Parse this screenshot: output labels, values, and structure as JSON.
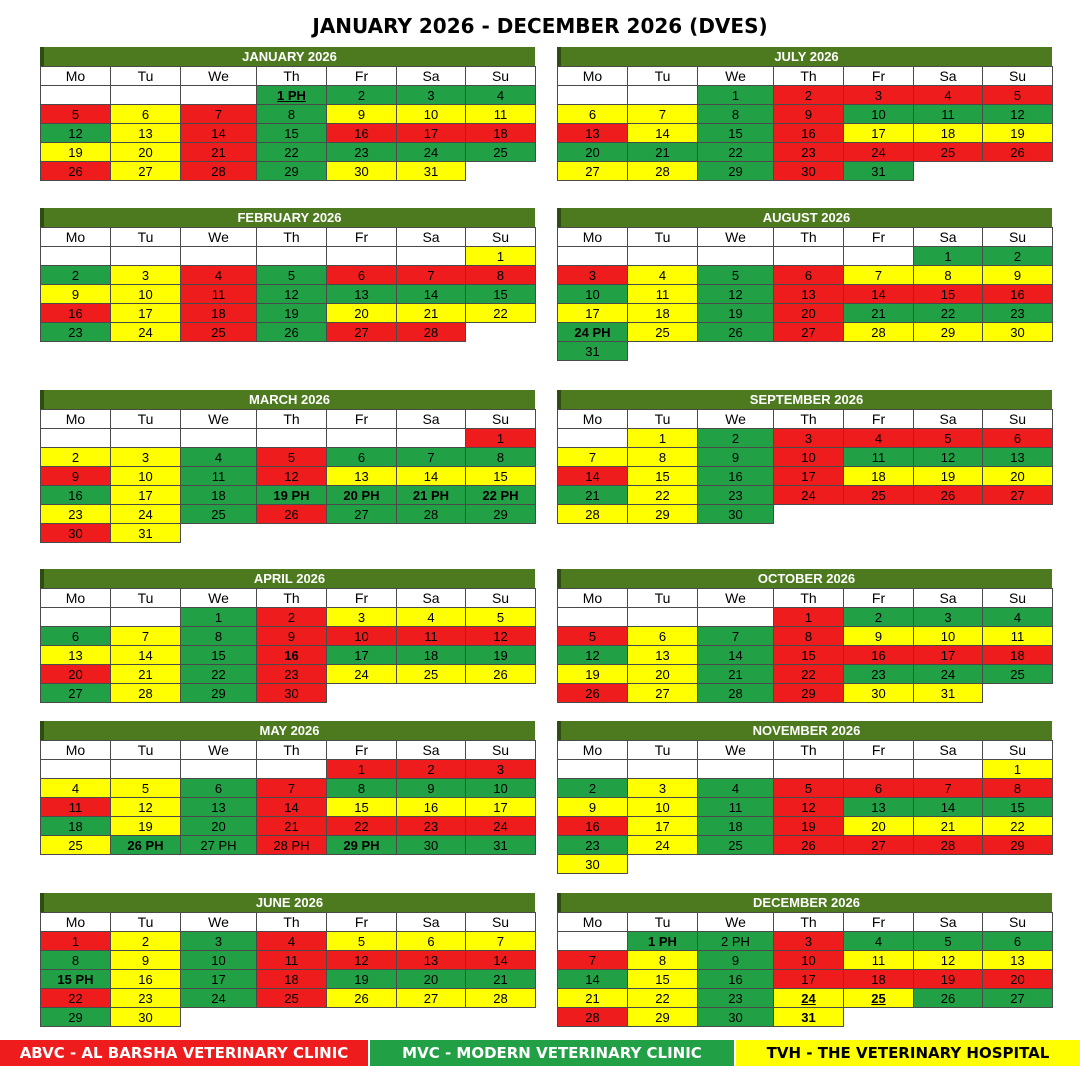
{
  "title": "JANUARY 2026 - DECEMBER 2026 (DVES)",
  "weekdays": [
    "Mo",
    "Tu",
    "We",
    "Th",
    "Fr",
    "Sa",
    "Su"
  ],
  "colors": {
    "red": "#ee1c1c",
    "green": "#22a045",
    "yellow": "#ffff00",
    "header": "#4e7a1f"
  },
  "legend": {
    "abvc": "ABVC - AL BARSHA VETERINARY CLINIC",
    "mvc": "MVC - MODERN VETERINARY CLINIC",
    "tvh": "TVH - THE VETERINARY HOSPITAL"
  },
  "months": [
    {
      "name": "JANUARY 2026",
      "col": 0,
      "top": 47,
      "rows": [
        [
          "w",
          "w",
          "w",
          "g:1 PH:bu",
          "g:2",
          "g:3",
          "g:4"
        ],
        [
          "r:5",
          "y:6",
          "r:7",
          "g:8",
          "y:9",
          "y:10",
          "y:11"
        ],
        [
          "g:12",
          "y:13",
          "r:14",
          "g:15",
          "r:16",
          "r:17",
          "r:18"
        ],
        [
          "y:19",
          "y:20",
          "r:21",
          "g:22",
          "g:23",
          "g:24",
          "g:25"
        ],
        [
          "r:26",
          "y:27",
          "r:28",
          "g:29",
          "y:30",
          "y:31",
          "n"
        ]
      ]
    },
    {
      "name": "FEBRUARY 2026",
      "col": 0,
      "top": 208,
      "rows": [
        [
          "w",
          "w",
          "w",
          "w",
          "w",
          "w",
          "y:1"
        ],
        [
          "g:2",
          "y:3",
          "r:4",
          "g:5",
          "r:6",
          "r:7",
          "r:8"
        ],
        [
          "y:9",
          "y:10",
          "r:11",
          "g:12",
          "g:13",
          "g:14",
          "g:15"
        ],
        [
          "r:16",
          "y:17",
          "r:18",
          "g:19",
          "y:20",
          "y:21",
          "y:22"
        ],
        [
          "g:23",
          "y:24",
          "r:25",
          "g:26",
          "r:27",
          "r:28",
          "n"
        ]
      ]
    },
    {
      "name": "MARCH 2026",
      "col": 0,
      "top": 390,
      "rows": [
        [
          "w",
          "w",
          "w",
          "w",
          "w",
          "w",
          "r:1"
        ],
        [
          "y:2",
          "y:3",
          "g:4",
          "r:5",
          "g:6",
          "g:7",
          "g:8"
        ],
        [
          "r:9",
          "y:10",
          "g:11",
          "r:12",
          "y:13",
          "y:14",
          "y:15"
        ],
        [
          "g:16",
          "y:17",
          "g:18",
          "g:19 PH:b",
          "g:20 PH:b",
          "g:21 PH:b",
          "g:22 PH:b"
        ],
        [
          "y:23",
          "y:24",
          "g:25",
          "r:26",
          "g:27",
          "g:28",
          "g:29"
        ],
        [
          "r:30",
          "y:31",
          "n",
          "n",
          "n",
          "n",
          "n"
        ]
      ]
    },
    {
      "name": "APRIL 2026",
      "col": 0,
      "top": 569,
      "rows": [
        [
          "w",
          "w",
          "g:1",
          "r:2",
          "y:3",
          "y:4",
          "y:5"
        ],
        [
          "g:6",
          "y:7",
          "g:8",
          "r:9",
          "r:10",
          "r:11",
          "r:12"
        ],
        [
          "y:13",
          "y:14",
          "g:15",
          "r:16:b",
          "g:17",
          "g:18",
          "g:19"
        ],
        [
          "r:20",
          "y:21",
          "g:22",
          "r:23",
          "y:24",
          "y:25",
          "y:26"
        ],
        [
          "g:27",
          "y:28",
          "g:29",
          "r:30",
          "n",
          "n",
          "n"
        ]
      ]
    },
    {
      "name": "MAY 2026",
      "col": 0,
      "top": 721,
      "rows": [
        [
          "w",
          "w",
          "w",
          "w",
          "r:1",
          "r:2",
          "r:3"
        ],
        [
          "y:4",
          "y:5",
          "g:6",
          "r:7",
          "g:8",
          "g:9",
          "g:10"
        ],
        [
          "r:11",
          "y:12",
          "g:13",
          "r:14",
          "y:15",
          "y:16",
          "y:17"
        ],
        [
          "g:18",
          "y:19",
          "g:20",
          "r:21",
          "r:22",
          "r:23",
          "r:24"
        ],
        [
          "y:25",
          "g:26 PH:b",
          "g:27 PH",
          "r:28 PH",
          "g:29 PH:b",
          "g:30",
          "g:31"
        ]
      ]
    },
    {
      "name": "JUNE 2026",
      "col": 0,
      "top": 893,
      "rows": [
        [
          "r:1",
          "y:2",
          "g:3",
          "r:4",
          "y:5",
          "y:6",
          "y:7"
        ],
        [
          "g:8",
          "y:9",
          "g:10",
          "r:11",
          "r:12",
          "r:13",
          "r:14"
        ],
        [
          "g:15 PH:b",
          "y:16",
          "g:17",
          "r:18",
          "g:19",
          "g:20",
          "g:21"
        ],
        [
          "r:22",
          "y:23",
          "g:24",
          "r:25",
          "y:26",
          "y:27",
          "y:28"
        ],
        [
          "g:29",
          "y:30",
          "n",
          "n",
          "n",
          "n",
          "n"
        ]
      ]
    },
    {
      "name": "JULY 2026",
      "col": 1,
      "top": 47,
      "rows": [
        [
          "w",
          "w",
          "g:1",
          "r:2",
          "r:3",
          "r:4",
          "r:5"
        ],
        [
          "y:6",
          "y:7",
          "g:8",
          "r:9",
          "g:10",
          "g:11",
          "g:12"
        ],
        [
          "r:13",
          "y:14",
          "g:15",
          "r:16",
          "y:17",
          "y:18",
          "y:19"
        ],
        [
          "g:20",
          "g:21",
          "g:22",
          "r:23",
          "r:24",
          "r:25",
          "r:26"
        ],
        [
          "y:27",
          "y:28",
          "g:29",
          "r:30",
          "g:31",
          "n",
          "n"
        ]
      ]
    },
    {
      "name": "AUGUST 2026",
      "col": 1,
      "top": 208,
      "rows": [
        [
          "w",
          "w",
          "w",
          "w",
          "w",
          "g:1",
          "g:2"
        ],
        [
          "r:3",
          "y:4",
          "g:5",
          "r:6",
          "y:7",
          "y:8",
          "y:9"
        ],
        [
          "g:10",
          "y:11",
          "g:12",
          "r:13",
          "r:14",
          "r:15",
          "r:16"
        ],
        [
          "y:17",
          "y:18",
          "g:19",
          "r:20",
          "g:21",
          "g:22",
          "g:23"
        ],
        [
          "g:24 PH:b",
          "y:25",
          "g:26",
          "r:27",
          "y:28",
          "y:29",
          "y:30"
        ],
        [
          "g:31",
          "n",
          "n",
          "n",
          "n",
          "n",
          "n"
        ]
      ]
    },
    {
      "name": "SEPTEMBER 2026",
      "col": 1,
      "top": 390,
      "rows": [
        [
          "w",
          "y:1",
          "g:2",
          "r:3",
          "r:4",
          "r:5",
          "r:6"
        ],
        [
          "y:7",
          "y:8",
          "g:9",
          "r:10",
          "g:11",
          "g:12",
          "g:13"
        ],
        [
          "r:14",
          "y:15",
          "g:16",
          "r:17",
          "y:18",
          "y:19",
          "y:20"
        ],
        [
          "g:21",
          "y:22",
          "g:23",
          "r:24",
          "r:25",
          "r:26",
          "r:27"
        ],
        [
          "y:28",
          "y:29",
          "g:30",
          "n",
          "n",
          "n",
          "n"
        ]
      ]
    },
    {
      "name": "OCTOBER 2026",
      "col": 1,
      "top": 569,
      "rows": [
        [
          "w",
          "w",
          "w",
          "r:1",
          "g:2",
          "g:3",
          "g:4"
        ],
        [
          "r:5",
          "y:6",
          "g:7",
          "r:8",
          "y:9",
          "y:10",
          "y:11"
        ],
        [
          "g:12",
          "y:13",
          "g:14",
          "r:15",
          "r:16",
          "r:17",
          "r:18"
        ],
        [
          "y:19",
          "y:20",
          "g:21",
          "r:22",
          "g:23",
          "g:24",
          "g:25"
        ],
        [
          "r:26",
          "y:27",
          "g:28",
          "r:29",
          "y:30",
          "y:31",
          "n"
        ]
      ]
    },
    {
      "name": "NOVEMBER 2026",
      "col": 1,
      "top": 721,
      "rows": [
        [
          "w",
          "w",
          "w",
          "w",
          "w",
          "w",
          "y:1"
        ],
        [
          "g:2",
          "y:3",
          "g:4",
          "r:5",
          "r:6",
          "r:7",
          "r:8"
        ],
        [
          "y:9",
          "y:10",
          "g:11",
          "r:12",
          "g:13",
          "g:14",
          "g:15"
        ],
        [
          "r:16",
          "y:17",
          "g:18",
          "r:19",
          "y:20",
          "y:21",
          "y:22"
        ],
        [
          "g:23",
          "y:24",
          "g:25",
          "r:26",
          "r:27",
          "r:28",
          "r:29"
        ],
        [
          "y:30",
          "n",
          "n",
          "n",
          "n",
          "n",
          "n"
        ]
      ]
    },
    {
      "name": "DECEMBER 2026",
      "col": 1,
      "top": 893,
      "rows": [
        [
          "w",
          "g:1 PH:b",
          "g:2 PH",
          "r:3",
          "g:4",
          "g:5",
          "g:6"
        ],
        [
          "r:7",
          "y:8",
          "g:9",
          "r:10",
          "y:11",
          "y:12",
          "y:13"
        ],
        [
          "g:14",
          "y:15",
          "g:16",
          "r:17",
          "r:18",
          "r:19",
          "r:20"
        ],
        [
          "y:21",
          "y:22",
          "g:23",
          "y:24:bu",
          "y:25:bu",
          "g:26",
          "g:27"
        ],
        [
          "r:28",
          "y:29",
          "g:30",
          "y:31:b",
          "n",
          "n",
          "n"
        ]
      ]
    }
  ]
}
